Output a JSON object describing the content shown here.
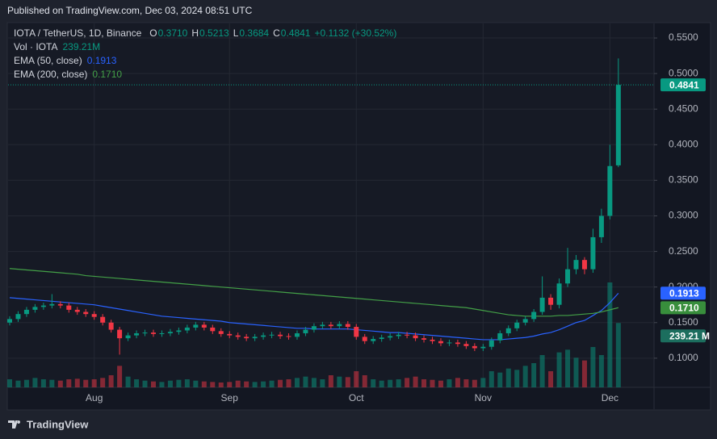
{
  "page": {
    "header": "Published on TradingView.com, Dec 03, 2024 08:51 UTC",
    "footer": "TradingView"
  },
  "chart_data": {
    "type": "candlestick",
    "legend": {
      "title": "IOTA / TetherUS, 1D, Binance",
      "ohlc_labels": [
        "O",
        "H",
        "L",
        "C"
      ],
      "ohlc_value_labels": [
        "0.3710",
        "0.5213",
        "0.3684",
        "0.4841"
      ],
      "change_label": "+0.1132 (+30.52%)",
      "volume_name": "Vol · IOTA",
      "volume_value_label": "239.21M",
      "volume_tag_label": "239.21 M"
    },
    "categories": [
      null,
      null,
      null,
      null,
      null,
      null,
      null,
      null,
      null,
      null,
      "Aug",
      null,
      null,
      null,
      null,
      null,
      null,
      null,
      null,
      null,
      null,
      null,
      null,
      null,
      null,
      null,
      "Sep",
      null,
      null,
      null,
      null,
      null,
      null,
      null,
      null,
      null,
      null,
      null,
      null,
      null,
      null,
      "Oct",
      null,
      null,
      null,
      null,
      null,
      null,
      null,
      null,
      null,
      null,
      null,
      null,
      null,
      null,
      "Nov",
      null,
      null,
      null,
      null,
      null,
      null,
      null,
      null,
      null,
      null,
      null,
      null,
      null,
      null,
      "Dec",
      null
    ],
    "open": [
      0.15,
      0.155,
      0.162,
      0.168,
      0.172,
      0.174,
      0.176,
      0.174,
      0.168,
      0.165,
      0.162,
      0.158,
      0.15,
      0.14,
      0.128,
      0.132,
      0.135,
      0.136,
      0.134,
      0.135,
      0.137,
      0.139,
      0.143,
      0.147,
      0.143,
      0.138,
      0.134,
      0.132,
      0.13,
      0.128,
      0.13,
      0.132,
      0.133,
      0.131,
      0.13,
      0.135,
      0.14,
      0.145,
      0.147,
      0.145,
      0.148,
      0.144,
      0.13,
      0.124,
      0.127,
      0.129,
      0.131,
      0.133,
      0.132,
      0.128,
      0.126,
      0.124,
      0.121,
      0.122,
      0.12,
      0.117,
      0.114,
      0.116,
      0.125,
      0.135,
      0.142,
      0.15,
      0.155,
      0.165,
      0.185,
      0.175,
      0.205,
      0.225,
      0.238,
      0.225,
      0.27,
      0.3,
      0.371
    ],
    "high": [
      0.159,
      0.166,
      0.172,
      0.176,
      0.178,
      0.19,
      0.18,
      0.178,
      0.172,
      0.169,
      0.166,
      0.162,
      0.154,
      0.144,
      0.136,
      0.139,
      0.14,
      0.14,
      0.139,
      0.141,
      0.143,
      0.147,
      0.151,
      0.151,
      0.147,
      0.142,
      0.138,
      0.136,
      0.134,
      0.134,
      0.136,
      0.137,
      0.137,
      0.135,
      0.139,
      0.144,
      0.149,
      0.151,
      0.151,
      0.152,
      0.152,
      0.148,
      0.134,
      0.131,
      0.133,
      0.135,
      0.137,
      0.137,
      0.136,
      0.132,
      0.13,
      0.128,
      0.126,
      0.126,
      0.124,
      0.121,
      0.12,
      0.129,
      0.139,
      0.146,
      0.154,
      0.159,
      0.169,
      0.215,
      0.19,
      0.212,
      0.255,
      0.245,
      0.242,
      0.282,
      0.31,
      0.4,
      0.5213
    ],
    "low": [
      0.146,
      0.151,
      0.158,
      0.164,
      0.168,
      0.17,
      0.17,
      0.164,
      0.161,
      0.158,
      0.154,
      0.146,
      0.136,
      0.105,
      0.124,
      0.128,
      0.131,
      0.13,
      0.13,
      0.131,
      0.133,
      0.135,
      0.139,
      0.139,
      0.134,
      0.13,
      0.128,
      0.126,
      0.124,
      0.124,
      0.126,
      0.128,
      0.127,
      0.126,
      0.126,
      0.131,
      0.136,
      0.141,
      0.141,
      0.141,
      0.14,
      0.126,
      0.12,
      0.12,
      0.123,
      0.125,
      0.127,
      0.128,
      0.124,
      0.122,
      0.12,
      0.117,
      0.117,
      0.116,
      0.113,
      0.11,
      0.11,
      0.112,
      0.121,
      0.131,
      0.138,
      0.146,
      0.151,
      0.161,
      0.168,
      0.17,
      0.2,
      0.218,
      0.218,
      0.22,
      0.262,
      0.295,
      0.3684
    ],
    "close": [
      0.155,
      0.162,
      0.168,
      0.172,
      0.174,
      0.176,
      0.174,
      0.168,
      0.165,
      0.162,
      0.158,
      0.15,
      0.14,
      0.128,
      0.132,
      0.135,
      0.136,
      0.134,
      0.135,
      0.137,
      0.139,
      0.143,
      0.147,
      0.143,
      0.138,
      0.134,
      0.132,
      0.13,
      0.128,
      0.13,
      0.132,
      0.133,
      0.131,
      0.13,
      0.135,
      0.14,
      0.145,
      0.147,
      0.145,
      0.148,
      0.144,
      0.13,
      0.124,
      0.127,
      0.129,
      0.131,
      0.133,
      0.132,
      0.128,
      0.126,
      0.124,
      0.121,
      0.122,
      0.12,
      0.117,
      0.114,
      0.116,
      0.125,
      0.135,
      0.142,
      0.15,
      0.155,
      0.165,
      0.185,
      0.175,
      0.205,
      0.225,
      0.238,
      0.225,
      0.27,
      0.3,
      0.37,
      0.4841
    ],
    "volume": [
      30,
      25,
      28,
      35,
      30,
      28,
      25,
      30,
      32,
      28,
      30,
      35,
      45,
      80,
      40,
      30,
      25,
      22,
      20,
      25,
      28,
      30,
      25,
      22,
      20,
      18,
      20,
      25,
      22,
      20,
      22,
      25,
      28,
      30,
      35,
      40,
      35,
      30,
      45,
      40,
      38,
      60,
      45,
      30,
      25,
      28,
      30,
      35,
      40,
      30,
      28,
      25,
      30,
      35,
      30,
      28,
      35,
      60,
      55,
      70,
      65,
      80,
      90,
      120,
      60,
      130,
      140,
      110,
      100,
      150,
      120,
      390,
      239.21
    ],
    "volume_ylim": [
      0,
      600
    ],
    "lines": [
      {
        "name": "EMA (50, close)",
        "color": "#2962ff",
        "value_label": "0.1913",
        "values": [
          0.185,
          0.184,
          0.183,
          0.182,
          0.181,
          0.18,
          0.179,
          0.178,
          0.177,
          0.176,
          0.175,
          0.173,
          0.171,
          0.169,
          0.167,
          0.165,
          0.163,
          0.161,
          0.159,
          0.158,
          0.157,
          0.156,
          0.155,
          0.154,
          0.153,
          0.152,
          0.15,
          0.149,
          0.148,
          0.147,
          0.146,
          0.145,
          0.144,
          0.143,
          0.142,
          0.142,
          0.141,
          0.141,
          0.141,
          0.141,
          0.141,
          0.14,
          0.139,
          0.138,
          0.137,
          0.136,
          0.136,
          0.135,
          0.134,
          0.133,
          0.132,
          0.131,
          0.13,
          0.129,
          0.128,
          0.127,
          0.126,
          0.126,
          0.126,
          0.127,
          0.128,
          0.129,
          0.131,
          0.134,
          0.136,
          0.14,
          0.145,
          0.15,
          0.153,
          0.16,
          0.167,
          0.178,
          0.1913
        ]
      },
      {
        "name": "EMA (200, close)",
        "color": "#43a047",
        "value_label": "0.1710",
        "values": [
          0.226,
          0.225,
          0.224,
          0.223,
          0.222,
          0.221,
          0.22,
          0.219,
          0.218,
          0.216,
          0.215,
          0.214,
          0.213,
          0.212,
          0.211,
          0.21,
          0.209,
          0.208,
          0.207,
          0.206,
          0.205,
          0.204,
          0.203,
          0.202,
          0.201,
          0.2,
          0.199,
          0.198,
          0.197,
          0.196,
          0.195,
          0.194,
          0.193,
          0.192,
          0.191,
          0.19,
          0.189,
          0.188,
          0.187,
          0.186,
          0.185,
          0.184,
          0.183,
          0.182,
          0.181,
          0.18,
          0.179,
          0.178,
          0.177,
          0.176,
          0.175,
          0.174,
          0.173,
          0.172,
          0.171,
          0.169,
          0.167,
          0.165,
          0.163,
          0.161,
          0.16,
          0.159,
          0.159,
          0.159,
          0.159,
          0.16,
          0.16,
          0.161,
          0.162,
          0.163,
          0.165,
          0.168,
          0.171
        ]
      }
    ],
    "up_color": "#089981",
    "down_color": "#f23645",
    "ylim": [
      0.059,
      0.575
    ],
    "yticks": [
      {
        "value": 0.1,
        "label": "0.1000"
      },
      {
        "value": 0.15,
        "label": "0.1500"
      },
      {
        "value": 0.2,
        "label": "0.2000"
      },
      {
        "value": 0.25,
        "label": "0.2500"
      },
      {
        "value": 0.3,
        "label": "0.3000"
      },
      {
        "value": 0.35,
        "label": "0.3500"
      },
      {
        "value": 0.4,
        "label": "0.4000"
      },
      {
        "value": 0.45,
        "label": "0.4500"
      },
      {
        "value": 0.5,
        "label": "0.5000"
      },
      {
        "value": 0.55,
        "label": "0.5500"
      }
    ],
    "grid": true
  }
}
